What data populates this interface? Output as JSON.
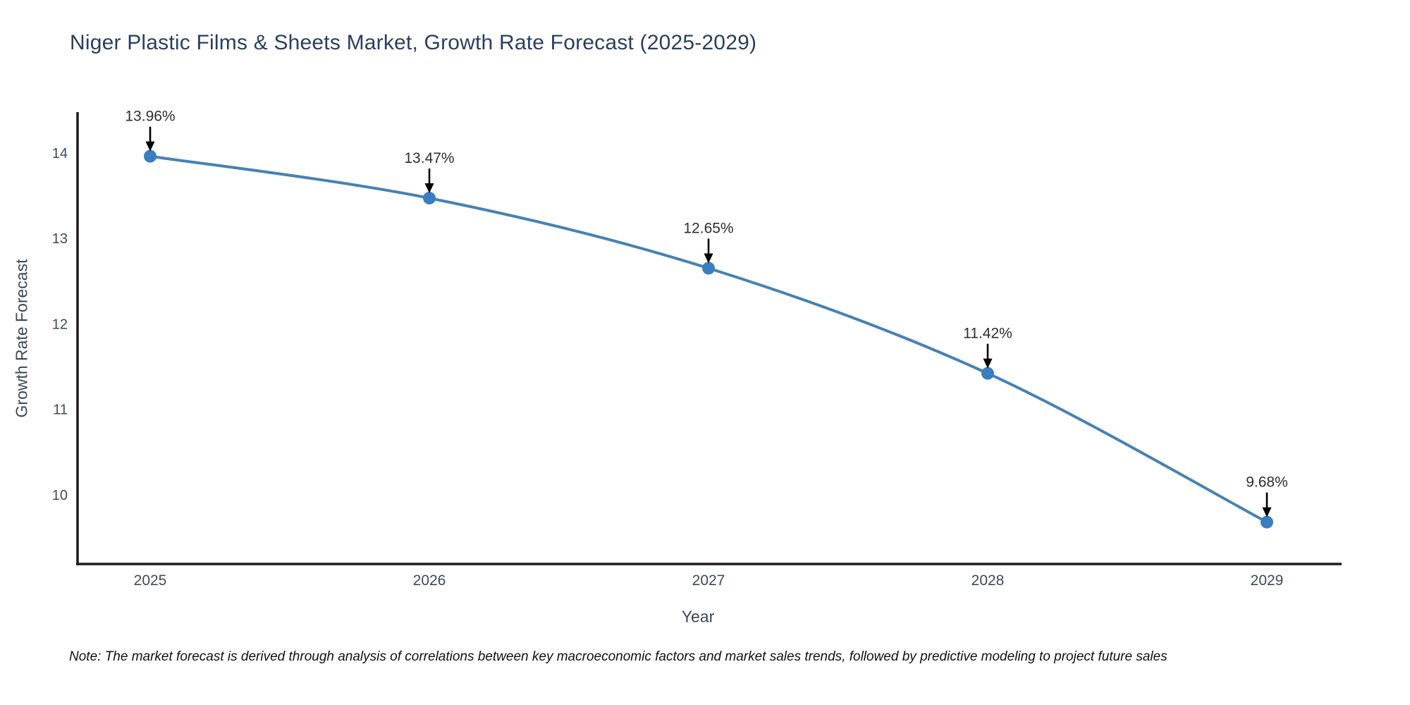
{
  "chart_data": {
    "type": "line",
    "title": "Niger Plastic Films & Sheets Market, Growth Rate Forecast (2025-2029)",
    "xlabel": "Year",
    "ylabel": "Growth Rate Forecast",
    "categories": [
      "2025",
      "2026",
      "2027",
      "2028",
      "2029"
    ],
    "values": [
      13.96,
      13.47,
      12.65,
      11.42,
      9.68
    ],
    "annotations": [
      "13.96%",
      "13.47%",
      "12.65%",
      "11.42%",
      "9.68%"
    ],
    "yticks": [
      10,
      11,
      12,
      13,
      14
    ],
    "ytick_labels": [
      "10",
      "11",
      "12",
      "13",
      "14"
    ],
    "ylim": [
      9.19,
      14.46
    ],
    "grid": false,
    "legend_position": "none",
    "note": "Note: The market forecast is derived through analysis of correlations between key macroeconomic factors and market sales trends, followed by predictive modeling to project future sales",
    "colors": {
      "line": "#4682b4",
      "marker": "#3a7ebf",
      "arrow": "#000000",
      "title_text": "#2a3f5f",
      "axis_text": "#3d4656",
      "tick_text": "#3f4a59",
      "annotation_text": "#2e2e2e",
      "spine": "#1b1b1b",
      "background": "#ffffff"
    }
  }
}
